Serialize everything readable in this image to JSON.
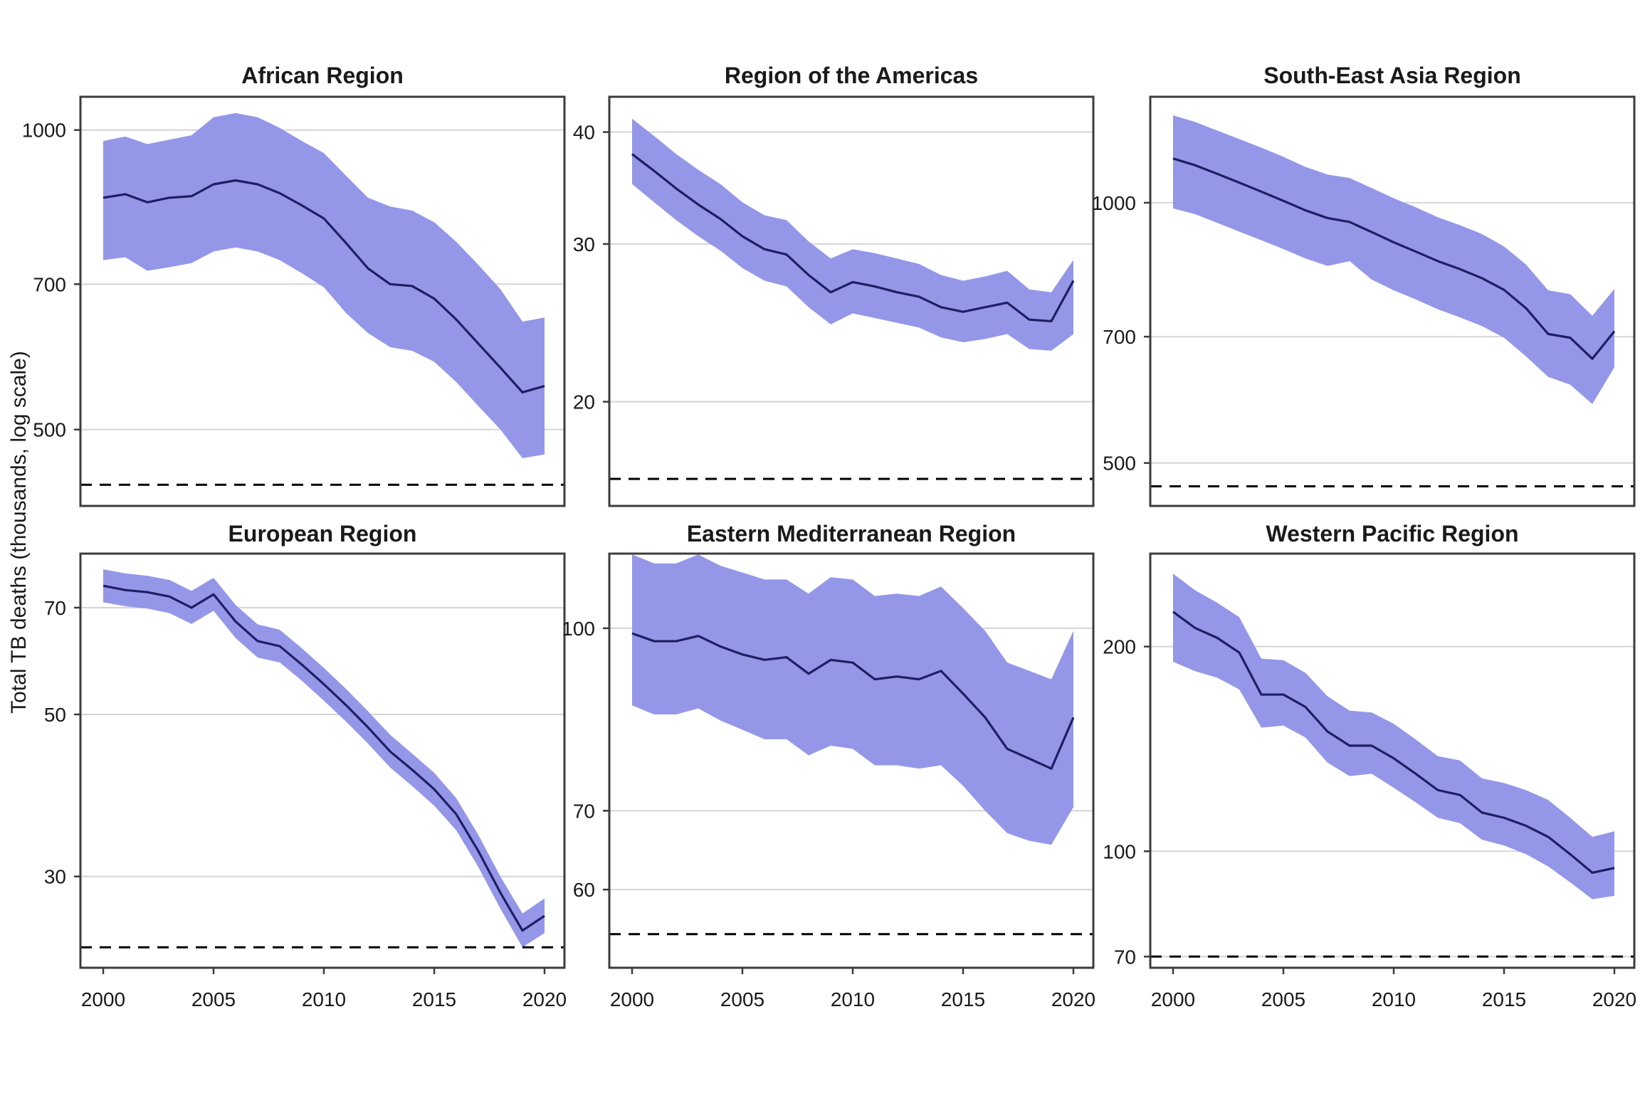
{
  "figure": {
    "ylabel": "Total TB deaths (thousands, log scale)",
    "x_ticks": [
      2000,
      2005,
      2010,
      2015,
      2020
    ],
    "colors": {
      "band": "#9497e8",
      "line": "#1e1e64",
      "grid": "#d5d5d5",
      "axis": "#3c3c3c",
      "milestone": "#000000",
      "text": "#1a1a1a"
    }
  },
  "chart_data": [
    {
      "type": "area",
      "title": "African Region",
      "x": [
        2000,
        2001,
        2002,
        2003,
        2004,
        2005,
        2006,
        2007,
        2008,
        2009,
        2010,
        2011,
        2012,
        2013,
        2014,
        2015,
        2016,
        2017,
        2018,
        2019,
        2020
      ],
      "series": [
        {
          "name": "best_estimate",
          "values": [
            855,
            862,
            846,
            855,
            858,
            882,
            890,
            882,
            864,
            840,
            815,
            770,
            726,
            700,
            697,
            677,
            645,
            610,
            577,
            545,
            553
          ]
        },
        {
          "name": "lower_bound",
          "values": [
            740,
            745,
            722,
            728,
            735,
            755,
            762,
            755,
            740,
            718,
            695,
            655,
            625,
            605,
            600,
            585,
            558,
            528,
            500,
            468,
            472
          ]
        },
        {
          "name": "upper_bound",
          "values": [
            975,
            985,
            968,
            978,
            988,
            1030,
            1040,
            1030,
            1005,
            975,
            948,
            900,
            855,
            838,
            830,
            808,
            772,
            732,
            692,
            642,
            648
          ]
        }
      ],
      "y_ticks": [
        1000,
        700,
        500
      ],
      "ylim": [
        419,
        1080
      ],
      "milestone_line": 440,
      "show_x_labels": false
    },
    {
      "type": "area",
      "title": "Region of the Americas",
      "x": [
        2000,
        2001,
        2002,
        2003,
        2004,
        2005,
        2006,
        2007,
        2008,
        2009,
        2010,
        2011,
        2012,
        2013,
        2014,
        2015,
        2016,
        2017,
        2018,
        2019,
        2020
      ],
      "series": [
        {
          "name": "best_estimate",
          "values": [
            37.8,
            36.2,
            34.6,
            33.2,
            32.0,
            30.6,
            29.6,
            29.2,
            27.7,
            26.5,
            27.2,
            26.9,
            26.5,
            26.2,
            25.5,
            25.2,
            25.5,
            25.8,
            24.7,
            24.6,
            27.3
          ]
        },
        {
          "name": "lower_bound",
          "values": [
            35.0,
            33.4,
            31.9,
            30.6,
            29.5,
            28.2,
            27.3,
            26.9,
            25.5,
            24.4,
            25.1,
            24.8,
            24.5,
            24.2,
            23.6,
            23.3,
            23.5,
            23.8,
            22.9,
            22.8,
            23.8
          ]
        },
        {
          "name": "upper_bound",
          "values": [
            41.4,
            39.6,
            37.8,
            36.3,
            35.0,
            33.4,
            32.3,
            31.9,
            30.2,
            28.9,
            29.6,
            29.3,
            28.9,
            28.5,
            27.7,
            27.3,
            27.6,
            28.0,
            26.7,
            26.5,
            28.8
          ]
        }
      ],
      "y_ticks": [
        40,
        30,
        20
      ],
      "ylim": [
        15.3,
        43.8
      ],
      "milestone_line": 16.4,
      "show_x_labels": false
    },
    {
      "type": "area",
      "title": "South-East Asia Region",
      "x": [
        2000,
        2001,
        2002,
        2003,
        2004,
        2005,
        2006,
        2007,
        2008,
        2009,
        2010,
        2011,
        2012,
        2013,
        2014,
        2015,
        2016,
        2017,
        2018,
        2019,
        2020
      ],
      "series": [
        {
          "name": "best_estimate",
          "values": [
            1125,
            1105,
            1080,
            1055,
            1030,
            1005,
            980,
            960,
            950,
            925,
            900,
            878,
            856,
            838,
            818,
            793,
            755,
            705,
            698,
            660,
            710
          ]
        },
        {
          "name": "lower_bound",
          "values": [
            985,
            970,
            948,
            926,
            905,
            884,
            862,
            845,
            856,
            815,
            792,
            773,
            753,
            737,
            720,
            698,
            664,
            629,
            616,
            585,
            645
          ]
        },
        {
          "name": "upper_bound",
          "values": [
            1262,
            1240,
            1212,
            1185,
            1158,
            1130,
            1100,
            1078,
            1068,
            1040,
            1012,
            988,
            962,
            942,
            920,
            890,
            848,
            792,
            784,
            740,
            795
          ]
        }
      ],
      "y_ticks": [
        1000,
        700,
        500
      ],
      "ylim": [
        446,
        1326
      ],
      "milestone_line": 470,
      "show_x_labels": false
    },
    {
      "type": "area",
      "title": "European Region",
      "x": [
        2000,
        2001,
        2002,
        2003,
        2004,
        2005,
        2006,
        2007,
        2008,
        2009,
        2010,
        2011,
        2012,
        2013,
        2014,
        2015,
        2016,
        2017,
        2018,
        2019,
        2020
      ],
      "series": [
        {
          "name": "best_estimate",
          "values": [
            75,
            74,
            73.5,
            72.5,
            70,
            73,
            67,
            63,
            62,
            58.5,
            55,
            51.5,
            48,
            44.5,
            42,
            39.5,
            36.5,
            32.5,
            28.5,
            25.3,
            26.5
          ]
        },
        {
          "name": "lower_bound",
          "values": [
            71.2,
            70.3,
            69.8,
            68.8,
            66.5,
            69.3,
            63.6,
            59.8,
            58.9,
            55.6,
            52.2,
            48.9,
            45.6,
            42.3,
            39.9,
            37.5,
            34.7,
            30.9,
            27.1,
            24.0,
            25.1
          ]
        },
        {
          "name": "upper_bound",
          "values": [
            79.0,
            78.0,
            77.4,
            76.4,
            73.8,
            76.9,
            70.6,
            66.4,
            65.3,
            61.6,
            57.9,
            54.2,
            50.5,
            46.9,
            44.2,
            41.6,
            38.4,
            34.2,
            30.0,
            26.7,
            28.0
          ]
        }
      ],
      "y_ticks": [
        70,
        50,
        30
      ],
      "ylim": [
        22.5,
        83
      ],
      "milestone_line": 24,
      "show_x_labels": true
    },
    {
      "type": "area",
      "title": "Eastern Mediterranean Region",
      "x": [
        2000,
        2001,
        2002,
        2003,
        2004,
        2005,
        2006,
        2007,
        2008,
        2009,
        2010,
        2011,
        2012,
        2013,
        2014,
        2015,
        2016,
        2017,
        2018,
        2019,
        2020
      ],
      "series": [
        {
          "name": "best_estimate",
          "values": [
            99,
            97.5,
            97.5,
            98.5,
            96.5,
            95,
            94,
            94.5,
            91.5,
            94,
            93.5,
            90.5,
            91,
            90.5,
            92,
            88,
            84,
            79,
            77.5,
            76,
            84
          ]
        },
        {
          "name": "lower_bound",
          "values": [
            86,
            84.5,
            84.5,
            85.5,
            83.5,
            82,
            80.5,
            80.5,
            78,
            79.5,
            79,
            76.5,
            76.5,
            76,
            76.5,
            73.5,
            70,
            67,
            66,
            65.5,
            70.5
          ]
        },
        {
          "name": "upper_bound",
          "values": [
            115.5,
            113.5,
            113.5,
            115.5,
            113,
            111.5,
            110,
            110,
            107,
            110.5,
            110,
            106.5,
            107,
            106.5,
            108.5,
            104,
            99.5,
            93.5,
            92,
            90.5,
            99.5
          ]
        }
      ],
      "y_ticks": [
        100,
        70,
        60
      ],
      "ylim": [
        51.5,
        115.7
      ],
      "milestone_line": 55,
      "show_x_labels": true
    },
    {
      "type": "area",
      "title": "Western Pacific Region",
      "x": [
        2000,
        2001,
        2002,
        2003,
        2004,
        2005,
        2006,
        2007,
        2008,
        2009,
        2010,
        2011,
        2012,
        2013,
        2014,
        2015,
        2016,
        2017,
        2018,
        2019,
        2020
      ],
      "series": [
        {
          "name": "best_estimate",
          "values": [
            225,
            213,
            206,
            196,
            170,
            170,
            163,
            150,
            143,
            143,
            137,
            130,
            123,
            121,
            114,
            112,
            109,
            105,
            99,
            93,
            94.5
          ]
        },
        {
          "name": "lower_bound",
          "values": [
            190,
            184,
            180,
            173,
            152,
            153,
            147,
            135,
            129,
            130,
            124,
            118,
            112,
            110,
            104,
            102,
            99,
            95,
            90,
            85,
            86
          ]
        },
        {
          "name": "upper_bound",
          "values": [
            256,
            242,
            232,
            221,
            192,
            191,
            183,
            169,
            161,
            160,
            154,
            146,
            138,
            136,
            128,
            126,
            123,
            119,
            112,
            105,
            107
          ]
        }
      ],
      "y_ticks": [
        200,
        100,
        70
      ],
      "ylim": [
        67.4,
        274
      ],
      "milestone_line": 70,
      "show_x_labels": true
    }
  ]
}
